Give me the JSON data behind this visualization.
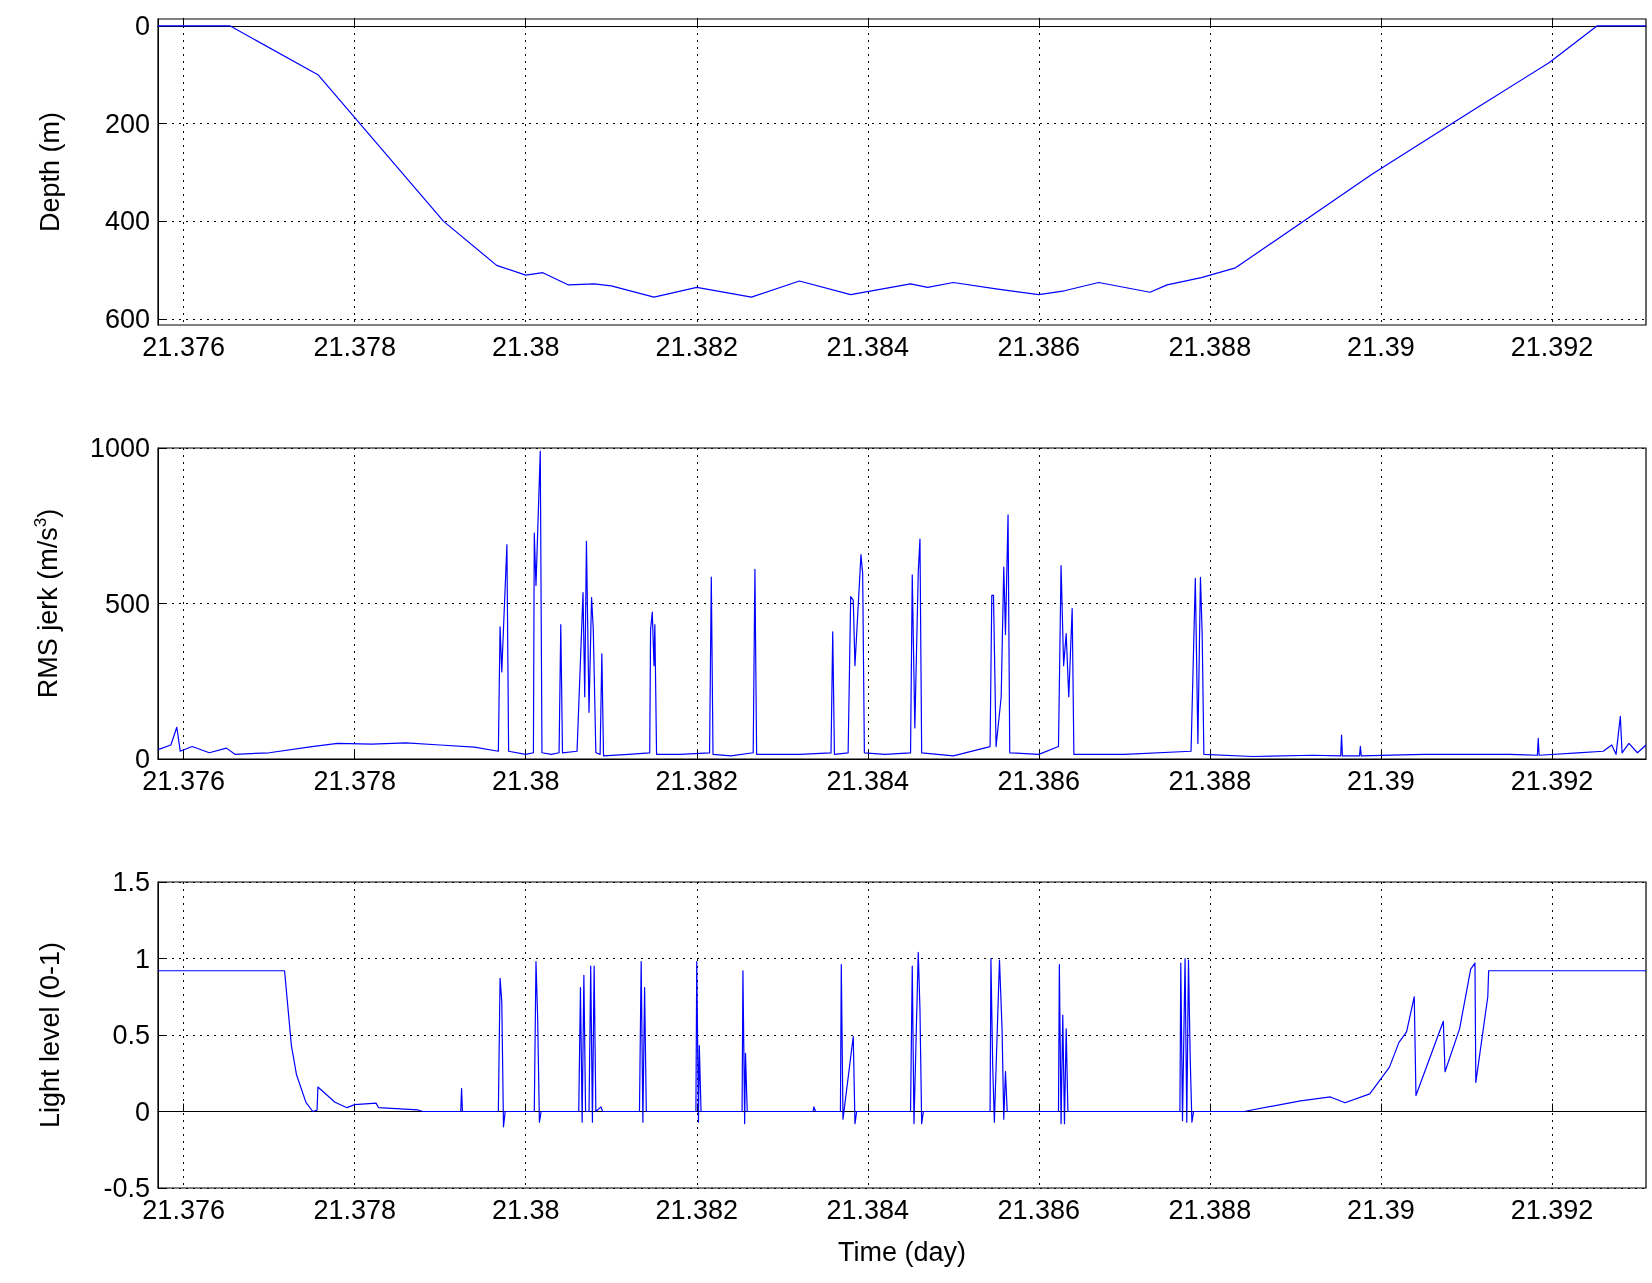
{
  "chart_data": [
    {
      "type": "line",
      "ylabel": "Depth (m)",
      "color": "#0000ff",
      "grid": true,
      "marker": "none",
      "line_style": "solid",
      "xlim": [
        21.3757,
        21.3931
      ],
      "xticks": [
        21.376,
        21.378,
        21.38,
        21.382,
        21.384,
        21.386,
        21.388,
        21.39,
        21.392
      ],
      "ylim": [
        612,
        -14
      ],
      "yticks": [
        0,
        200,
        400,
        600
      ],
      "x": [
        21.3757,
        21.37654,
        21.37757,
        21.37904,
        21.37966,
        21.38,
        21.3802,
        21.3805,
        21.3808,
        21.381,
        21.3815,
        21.382,
        21.38264,
        21.3832,
        21.3838,
        21.3845,
        21.3847,
        21.385,
        21.3855,
        21.386,
        21.3863,
        21.3867,
        21.3873,
        21.3875,
        21.3879,
        21.3883,
        21.3899,
        21.3911,
        21.39197,
        21.39253,
        21.3931
      ],
      "values": [
        0,
        0,
        100,
        400,
        490,
        510,
        505,
        530,
        528,
        532,
        555,
        535,
        555,
        522,
        550,
        528,
        535,
        525,
        538,
        550,
        542,
        525,
        545,
        530,
        515,
        495,
        303,
        170,
        75,
        0,
        0
      ]
    },
    {
      "type": "line",
      "ylabel": "RMS jerk (m/s$^{3}$)",
      "color": "#0000ff",
      "grid": true,
      "marker": "none",
      "line_style": "solid",
      "xlim": [
        21.3757,
        21.3931
      ],
      "xticks": [
        21.376,
        21.378,
        21.38,
        21.382,
        21.384,
        21.386,
        21.388,
        21.39,
        21.392
      ],
      "ylim": [
        0,
        1000
      ],
      "yticks": [
        0,
        500,
        1000
      ],
      "x": [
        21.3757,
        21.37585,
        21.37592,
        21.37596,
        21.3761,
        21.3763,
        21.3765,
        21.3766,
        21.377,
        21.3775,
        21.3778,
        21.3782,
        21.3786,
        21.379,
        21.3794,
        21.37968,
        21.3797,
        21.37972,
        21.37974,
        21.37978,
        21.3798,
        21.38,
        21.38009,
        21.3801,
        21.38012,
        21.38017,
        21.38019,
        21.3803,
        21.38039,
        21.38041,
        21.38043,
        21.3806,
        21.38067,
        21.38069,
        21.38071,
        21.38074,
        21.38077,
        21.38079,
        21.38082,
        21.38087,
        21.38089,
        21.38091,
        21.3812,
        21.38145,
        21.38146,
        21.38148,
        21.3815,
        21.38151,
        21.38153,
        21.3818,
        21.38215,
        21.38217,
        21.38219,
        21.3824,
        21.38266,
        21.38268,
        21.3827,
        21.3832,
        21.38357,
        21.38359,
        21.38361,
        21.38377,
        21.3838,
        21.38383,
        21.38385,
        21.38392,
        21.38394,
        21.38396,
        21.3842,
        21.3845,
        21.38452,
        21.38455,
        21.38459,
        21.38461,
        21.38463,
        21.385,
        21.38543,
        21.38545,
        21.38547,
        21.3855,
        21.38556,
        21.38559,
        21.38561,
        21.38564,
        21.38566,
        21.386,
        21.38623,
        21.38626,
        21.38629,
        21.38632,
        21.38635,
        21.38639,
        21.38641,
        21.387,
        21.38778,
        21.38783,
        21.38786,
        21.38789,
        21.38791,
        21.38793,
        21.3885,
        21.3892,
        21.38953,
        21.38954,
        21.38955,
        21.38975,
        21.38976,
        21.38977,
        21.3905,
        21.3915,
        21.39183,
        21.39184,
        21.39185,
        21.3923,
        21.3926,
        21.3927,
        21.39275,
        21.3928,
        21.39282,
        21.3929,
        21.393,
        21.3931
      ],
      "values": [
        30,
        45,
        102,
        25,
        40,
        20,
        35,
        15,
        20,
        40,
        50,
        48,
        52,
        45,
        38,
        25,
        425,
        280,
        420,
        689,
        25,
        15,
        20,
        726,
        558,
        990,
        20,
        15,
        20,
        432,
        20,
        25,
        535,
        200,
        700,
        150,
        519,
        417,
        20,
        15,
        338,
        10,
        15,
        20,
        417,
        472,
        300,
        432,
        15,
        15,
        20,
        585,
        15,
        10,
        20,
        610,
        15,
        15,
        20,
        409,
        15,
        20,
        522,
        511,
        300,
        657,
        597,
        20,
        15,
        20,
        592,
        100,
        600,
        707,
        20,
        10,
        40,
        526,
        526,
        40,
        200,
        617,
        400,
        785,
        20,
        15,
        40,
        622,
        300,
        403,
        200,
        484,
        15,
        15,
        25,
        581,
        50,
        584,
        403,
        15,
        8,
        12,
        10,
        77,
        10,
        10,
        41,
        10,
        15,
        15,
        12,
        66,
        12,
        20,
        25,
        45,
        15,
        137,
        20,
        50,
        20,
        45
      ]
    },
    {
      "type": "line",
      "ylabel": "Light level (0-1)",
      "xlabel": "Time (day)",
      "color": "#0000ff",
      "grid": true,
      "marker": "none",
      "line_style": "solid",
      "xlim": [
        21.3757,
        21.3931
      ],
      "xticks": [
        21.376,
        21.378,
        21.38,
        21.382,
        21.384,
        21.386,
        21.388,
        21.39,
        21.392
      ],
      "ylim": [
        -0.5,
        1.5
      ],
      "yticks": [
        -0.5,
        0,
        0.5,
        1,
        1.5
      ],
      "x": [
        21.3757,
        21.37718,
        21.37726,
        21.37732,
        21.37743,
        21.37751,
        21.37756,
        21.37757,
        21.37777,
        21.37791,
        21.378,
        21.37825,
        21.37828,
        21.37874,
        21.3788,
        21.37924,
        21.37925,
        21.37926,
        21.37968,
        21.3797,
        21.37972,
        21.37974,
        21.37976,
        21.3801,
        21.38012,
        21.38014,
        21.38016,
        21.38018,
        21.38062,
        21.38064,
        21.38066,
        21.38068,
        21.3807,
        21.38074,
        21.38076,
        21.38078,
        21.3808,
        21.38082,
        21.38088,
        21.3809,
        21.38133,
        21.38135,
        21.38137,
        21.38139,
        21.38141,
        21.38199,
        21.382,
        21.38202,
        21.38203,
        21.38205,
        21.38253,
        21.38254,
        21.38256,
        21.38257,
        21.38259,
        21.38336,
        21.38337,
        21.38339,
        21.38368,
        21.38369,
        21.38371,
        21.38383,
        21.38385,
        21.38387,
        21.3845,
        21.38452,
        21.38454,
        21.38459,
        21.38461,
        21.38463,
        21.38465,
        21.38543,
        21.38544,
        21.38546,
        21.38548,
        21.38554,
        21.38557,
        21.38559,
        21.38561,
        21.38563,
        21.38623,
        21.38624,
        21.38626,
        21.38628,
        21.3863,
        21.38632,
        21.38634,
        21.38765,
        21.38766,
        21.38768,
        21.38771,
        21.38773,
        21.38775,
        21.38777,
        21.38779,
        21.38781,
        21.3884,
        21.38906,
        21.38941,
        21.38958,
        21.38987,
        21.3901,
        21.39021,
        21.3903,
        21.39039,
        21.39041,
        21.39073,
        21.39075,
        21.39092,
        21.39105,
        21.3911,
        21.39111,
        21.39125,
        21.39126,
        21.3931
      ],
      "values": [
        0.92,
        0.92,
        0.43,
        0.24,
        0.06,
        0,
        0.01,
        0.16,
        0.06,
        0.025,
        0.045,
        0.055,
        0.025,
        0.01,
        0,
        0,
        0.15,
        0,
        0,
        0.87,
        0.72,
        -0.1,
        0,
        0,
        0.98,
        0.6,
        -0.07,
        0,
        0,
        0.81,
        -0.07,
        0.89,
        0,
        0,
        0.95,
        -0.07,
        0.95,
        0,
        0.03,
        0,
        0,
        0.98,
        -0.07,
        0.81,
        0,
        0,
        0.98,
        -0.07,
        0.43,
        0,
        0,
        0.92,
        -0.08,
        0.38,
        0,
        0,
        0.03,
        0,
        0,
        0.96,
        -0.05,
        0.49,
        -0.08,
        0,
        0,
        0.95,
        -0.08,
        1.04,
        0.67,
        -0.08,
        0,
        0,
        1,
        0.31,
        -0.07,
        0.99,
        0.54,
        -0.05,
        0.26,
        0,
        0,
        0.96,
        -0.08,
        0.63,
        -0.08,
        0.54,
        0,
        0,
        0.97,
        -0.06,
        1,
        -0.07,
        0.99,
        0.35,
        -0.07,
        0,
        0,
        0.07,
        0.095,
        0.057,
        0.115,
        0.29,
        0.45,
        0.52,
        0.75,
        0.105,
        0.59,
        0.26,
        0.54,
        0.93,
        0.97,
        0.19,
        0.75,
        0.92,
        0.92
      ]
    }
  ]
}
